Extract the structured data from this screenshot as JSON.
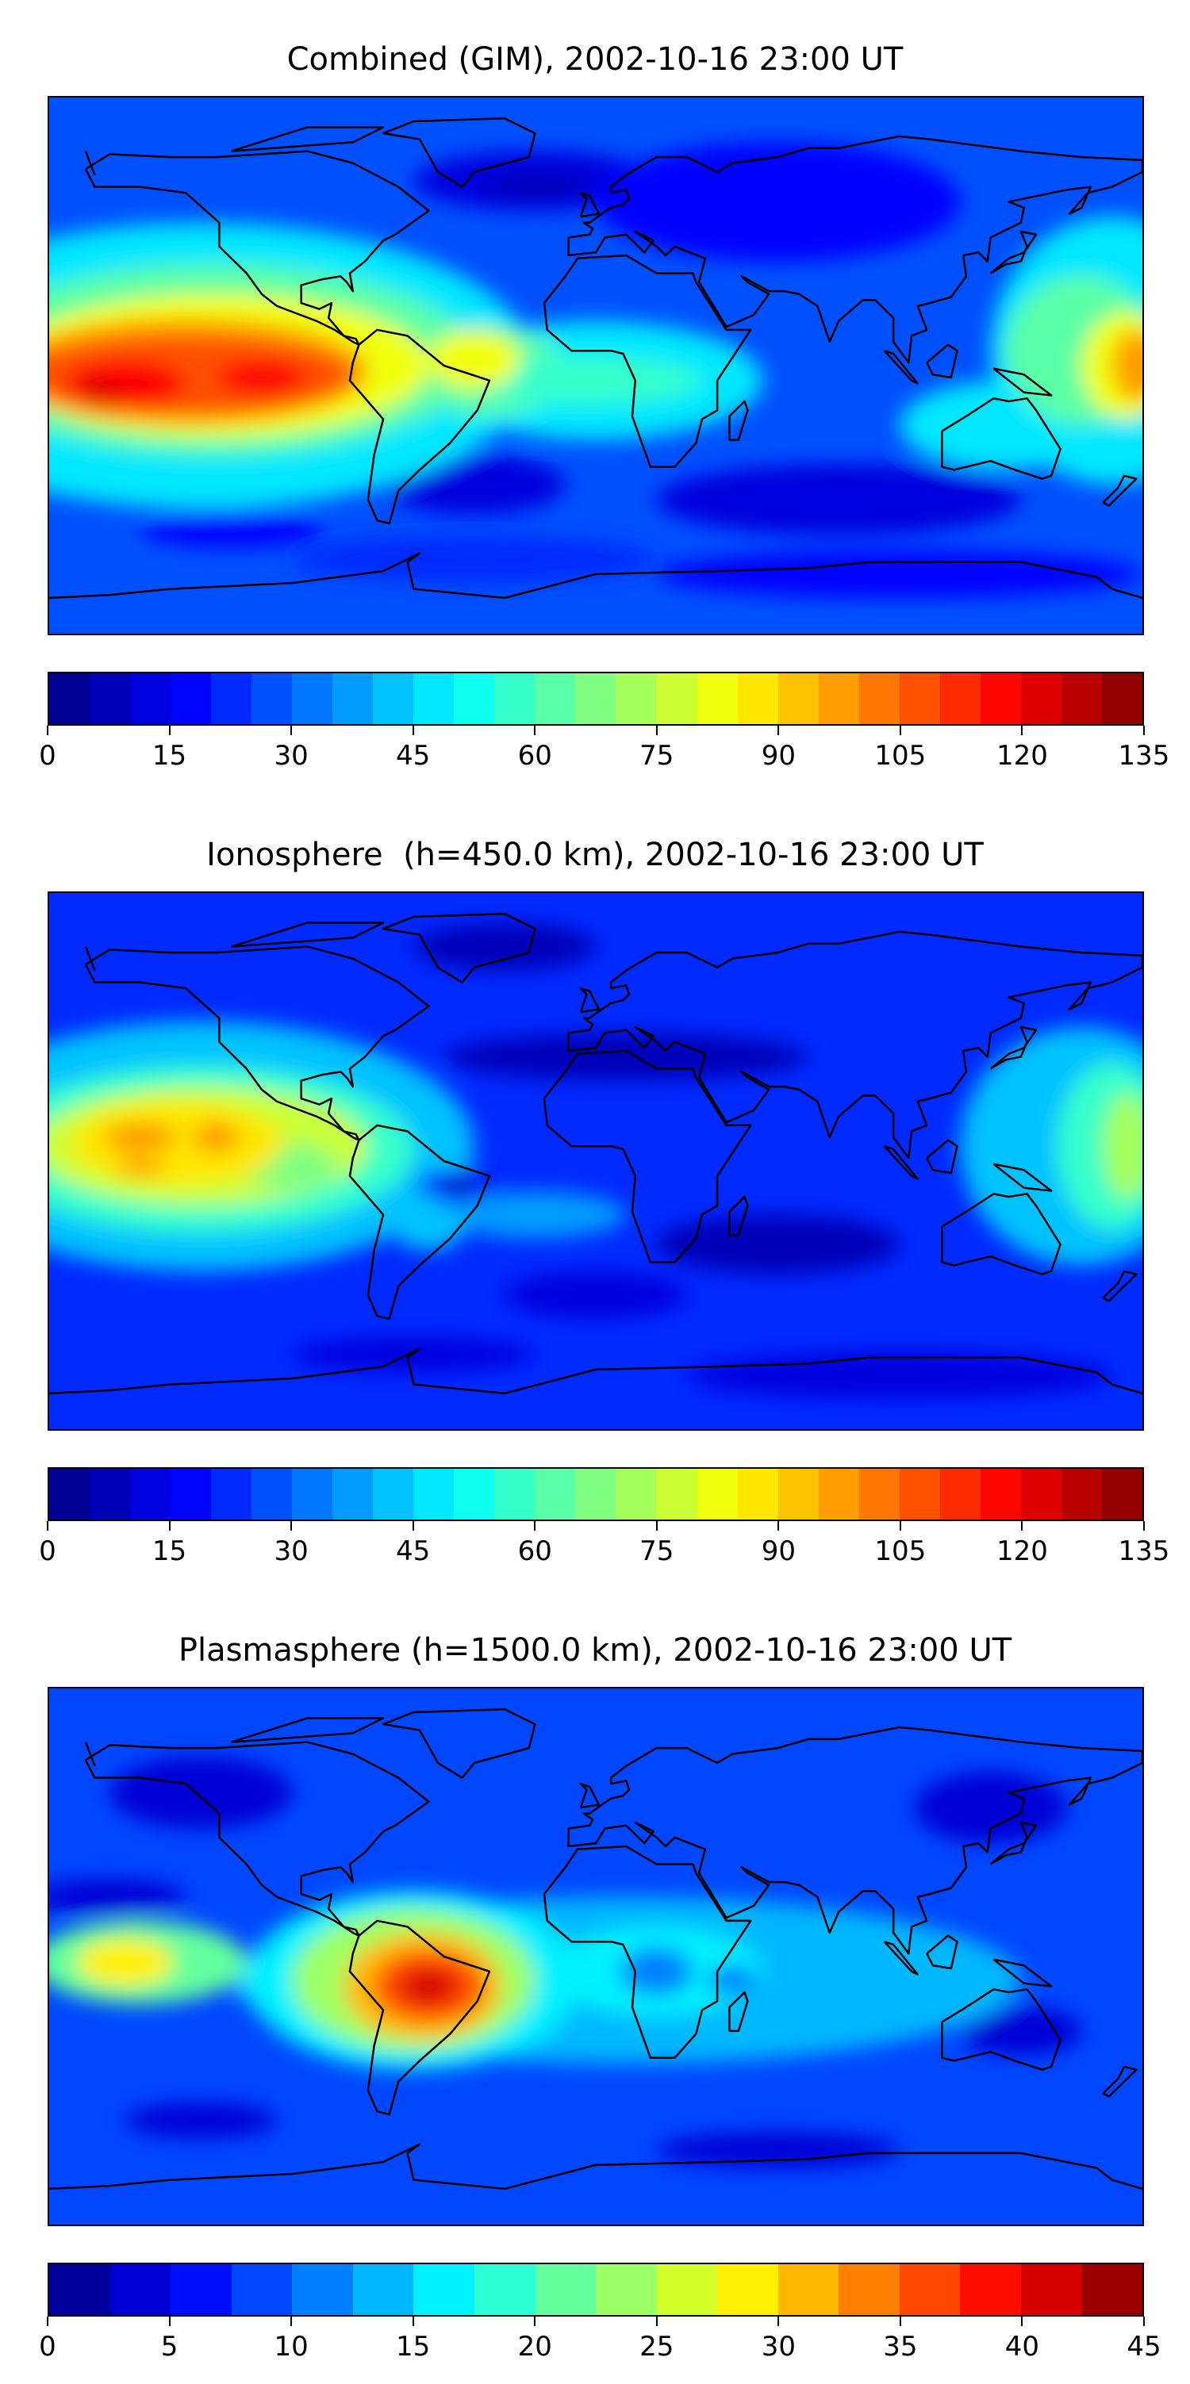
{
  "chart_data": [
    {
      "type": "heatmap",
      "title": "Combined (GIM), 2002-10-16 23:00 UT",
      "colormap": "jet",
      "vmin": 0,
      "vmax": 135,
      "level_step": 5,
      "colorbar": {
        "ticks": [
          "0",
          "15",
          "30",
          "45",
          "60",
          "75",
          "90",
          "105",
          "120",
          "135"
        ]
      },
      "features": {
        "max_region": "equatorial Pacific west of South America (~120-125)",
        "min_region": "North Atlantic / South Indian Ocean (~5-10)"
      }
    },
    {
      "type": "heatmap",
      "title": "Ionosphere  (h=450.0 km), 2002-10-16 23:00 UT",
      "colormap": "jet",
      "vmin": 0,
      "vmax": 135,
      "level_step": 5,
      "colorbar": {
        "ticks": [
          "0",
          "15",
          "30",
          "45",
          "60",
          "75",
          "90",
          "105",
          "120",
          "135"
        ]
      },
      "features": {
        "max_region": "equatorial Pacific (~90-95)",
        "min_region": "Eurasia / South Indian Ocean (~0-5)"
      }
    },
    {
      "type": "heatmap",
      "title": "Plasmasphere (h=1500.0 km), 2002-10-16 23:00 UT",
      "colormap": "jet",
      "vmin": 0,
      "vmax": 45,
      "level_step": 2.5,
      "colorbar": {
        "ticks": [
          "0",
          "5",
          "10",
          "15",
          "20",
          "25",
          "30",
          "35",
          "40",
          "45"
        ]
      },
      "features": {
        "max_region": "central South America (~40)",
        "min_region": "North Pacific / Eastern Asia (~2.5-5)"
      }
    }
  ]
}
